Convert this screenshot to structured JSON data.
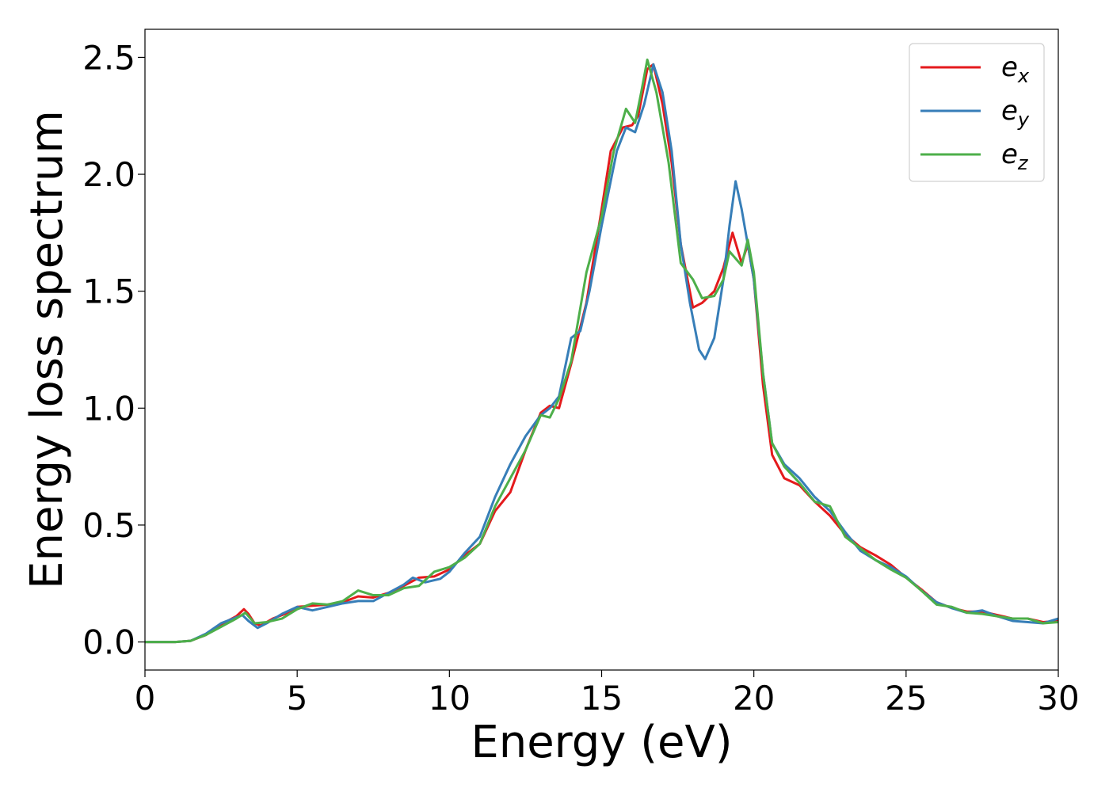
{
  "chart_data": {
    "type": "line",
    "title": "",
    "xlabel": "Energy (eV)",
    "ylabel": "Energy loss spectrum",
    "xlim": [
      0,
      30
    ],
    "ylim": [
      -0.12,
      2.62
    ],
    "xticks": [
      0,
      5,
      10,
      15,
      20,
      25,
      30
    ],
    "xtick_labels": [
      "0",
      "5",
      "10",
      "15",
      "20",
      "25",
      "30"
    ],
    "yticks": [
      0.0,
      0.5,
      1.0,
      1.5,
      2.0,
      2.5
    ],
    "ytick_labels": [
      "0.0",
      "0.5",
      "1.0",
      "1.5",
      "2.0",
      "2.5"
    ],
    "grid": false,
    "legend_position": "top-right",
    "series": [
      {
        "name": "e",
        "subscript": "x",
        "color": "#e41a1c",
        "points": [
          [
            0,
            0
          ],
          [
            1,
            0
          ],
          [
            1.5,
            0.005
          ],
          [
            2,
            0.03
          ],
          [
            2.5,
            0.075
          ],
          [
            3,
            0.11
          ],
          [
            3.25,
            0.14
          ],
          [
            3.4,
            0.12
          ],
          [
            3.6,
            0.08
          ],
          [
            3.8,
            0.07
          ],
          [
            4.2,
            0.1
          ],
          [
            4.6,
            0.12
          ],
          [
            5,
            0.15
          ],
          [
            5.5,
            0.155
          ],
          [
            6,
            0.16
          ],
          [
            6.5,
            0.17
          ],
          [
            7,
            0.195
          ],
          [
            7.5,
            0.19
          ],
          [
            8,
            0.21
          ],
          [
            8.5,
            0.24
          ],
          [
            9,
            0.275
          ],
          [
            9.5,
            0.28
          ],
          [
            10,
            0.31
          ],
          [
            10.5,
            0.37
          ],
          [
            11,
            0.42
          ],
          [
            11.5,
            0.56
          ],
          [
            12,
            0.64
          ],
          [
            12.5,
            0.82
          ],
          [
            13,
            0.98
          ],
          [
            13.3,
            1.01
          ],
          [
            13.6,
            1.0
          ],
          [
            14,
            1.19
          ],
          [
            14.5,
            1.45
          ],
          [
            15,
            1.85
          ],
          [
            15.3,
            2.1
          ],
          [
            15.7,
            2.2
          ],
          [
            16,
            2.21
          ],
          [
            16.2,
            2.25
          ],
          [
            16.5,
            2.45
          ],
          [
            16.7,
            2.47
          ],
          [
            17,
            2.3
          ],
          [
            17.3,
            2.05
          ],
          [
            17.6,
            1.7
          ],
          [
            18,
            1.43
          ],
          [
            18.3,
            1.45
          ],
          [
            18.7,
            1.5
          ],
          [
            19,
            1.6
          ],
          [
            19.3,
            1.75
          ],
          [
            19.6,
            1.62
          ],
          [
            19.8,
            1.7
          ],
          [
            20,
            1.55
          ],
          [
            20.3,
            1.1
          ],
          [
            20.6,
            0.8
          ],
          [
            21,
            0.7
          ],
          [
            21.5,
            0.67
          ],
          [
            22,
            0.6
          ],
          [
            22.5,
            0.54
          ],
          [
            23,
            0.46
          ],
          [
            23.5,
            0.405
          ],
          [
            24,
            0.37
          ],
          [
            24.5,
            0.33
          ],
          [
            25,
            0.275
          ],
          [
            25.5,
            0.225
          ],
          [
            26,
            0.17
          ],
          [
            26.5,
            0.145
          ],
          [
            27,
            0.13
          ],
          [
            27.5,
            0.13
          ],
          [
            28,
            0.115
          ],
          [
            28.5,
            0.1
          ],
          [
            29,
            0.1
          ],
          [
            29.5,
            0.085
          ],
          [
            30,
            0.09
          ]
        ]
      },
      {
        "name": "e",
        "subscript": "y",
        "color": "#377eb8",
        "points": [
          [
            0,
            0
          ],
          [
            1,
            0
          ],
          [
            1.5,
            0.005
          ],
          [
            2,
            0.035
          ],
          [
            2.5,
            0.08
          ],
          [
            3,
            0.105
          ],
          [
            3.2,
            0.115
          ],
          [
            3.4,
            0.09
          ],
          [
            3.7,
            0.06
          ],
          [
            4,
            0.08
          ],
          [
            4.5,
            0.12
          ],
          [
            5,
            0.15
          ],
          [
            5.5,
            0.135
          ],
          [
            6,
            0.15
          ],
          [
            6.5,
            0.165
          ],
          [
            7,
            0.175
          ],
          [
            7.5,
            0.175
          ],
          [
            8,
            0.21
          ],
          [
            8.5,
            0.245
          ],
          [
            8.8,
            0.275
          ],
          [
            9.2,
            0.255
          ],
          [
            9.7,
            0.27
          ],
          [
            10,
            0.3
          ],
          [
            10.5,
            0.38
          ],
          [
            11,
            0.45
          ],
          [
            11.5,
            0.62
          ],
          [
            12,
            0.76
          ],
          [
            12.5,
            0.88
          ],
          [
            13,
            0.97
          ],
          [
            13.3,
            1.0
          ],
          [
            13.6,
            1.05
          ],
          [
            14,
            1.3
          ],
          [
            14.3,
            1.33
          ],
          [
            14.6,
            1.5
          ],
          [
            15,
            1.78
          ],
          [
            15.5,
            2.1
          ],
          [
            15.8,
            2.2
          ],
          [
            16.1,
            2.18
          ],
          [
            16.4,
            2.3
          ],
          [
            16.7,
            2.47
          ],
          [
            17,
            2.35
          ],
          [
            17.3,
            2.1
          ],
          [
            17.6,
            1.7
          ],
          [
            17.9,
            1.45
          ],
          [
            18.2,
            1.25
          ],
          [
            18.4,
            1.21
          ],
          [
            18.7,
            1.3
          ],
          [
            19,
            1.55
          ],
          [
            19.2,
            1.78
          ],
          [
            19.4,
            1.97
          ],
          [
            19.6,
            1.85
          ],
          [
            19.8,
            1.7
          ],
          [
            20,
            1.55
          ],
          [
            20.3,
            1.15
          ],
          [
            20.6,
            0.85
          ],
          [
            21,
            0.76
          ],
          [
            21.5,
            0.7
          ],
          [
            22,
            0.62
          ],
          [
            22.5,
            0.56
          ],
          [
            23,
            0.47
          ],
          [
            23.5,
            0.39
          ],
          [
            24,
            0.35
          ],
          [
            24.5,
            0.32
          ],
          [
            25,
            0.28
          ],
          [
            25.5,
            0.22
          ],
          [
            26,
            0.17
          ],
          [
            26.5,
            0.145
          ],
          [
            27,
            0.125
          ],
          [
            27.5,
            0.135
          ],
          [
            28,
            0.11
          ],
          [
            28.5,
            0.09
          ],
          [
            29,
            0.085
          ],
          [
            29.5,
            0.08
          ],
          [
            30,
            0.1
          ]
        ]
      },
      {
        "name": "e",
        "subscript": "z",
        "color": "#4daf4a",
        "points": [
          [
            0,
            0
          ],
          [
            1,
            0
          ],
          [
            1.5,
            0.005
          ],
          [
            2,
            0.03
          ],
          [
            2.5,
            0.065
          ],
          [
            3,
            0.1
          ],
          [
            3.3,
            0.125
          ],
          [
            3.6,
            0.08
          ],
          [
            4,
            0.085
          ],
          [
            4.5,
            0.1
          ],
          [
            5,
            0.14
          ],
          [
            5.5,
            0.165
          ],
          [
            6,
            0.16
          ],
          [
            6.5,
            0.175
          ],
          [
            7,
            0.22
          ],
          [
            7.5,
            0.2
          ],
          [
            8,
            0.2
          ],
          [
            8.5,
            0.23
          ],
          [
            9,
            0.24
          ],
          [
            9.5,
            0.3
          ],
          [
            10,
            0.32
          ],
          [
            10.5,
            0.36
          ],
          [
            11,
            0.42
          ],
          [
            11.5,
            0.58
          ],
          [
            12,
            0.7
          ],
          [
            12.5,
            0.82
          ],
          [
            13,
            0.97
          ],
          [
            13.3,
            0.96
          ],
          [
            13.6,
            1.04
          ],
          [
            14,
            1.2
          ],
          [
            14.5,
            1.58
          ],
          [
            15,
            1.82
          ],
          [
            15.4,
            2.1
          ],
          [
            15.8,
            2.28
          ],
          [
            16.1,
            2.22
          ],
          [
            16.3,
            2.35
          ],
          [
            16.5,
            2.49
          ],
          [
            16.8,
            2.35
          ],
          [
            17.2,
            2.05
          ],
          [
            17.6,
            1.62
          ],
          [
            18,
            1.55
          ],
          [
            18.3,
            1.47
          ],
          [
            18.7,
            1.48
          ],
          [
            19,
            1.55
          ],
          [
            19.2,
            1.67
          ],
          [
            19.6,
            1.61
          ],
          [
            19.8,
            1.72
          ],
          [
            20,
            1.58
          ],
          [
            20.3,
            1.15
          ],
          [
            20.6,
            0.85
          ],
          [
            21,
            0.75
          ],
          [
            21.5,
            0.68
          ],
          [
            22,
            0.6
          ],
          [
            22.5,
            0.58
          ],
          [
            23,
            0.45
          ],
          [
            23.5,
            0.4
          ],
          [
            24,
            0.35
          ],
          [
            24.5,
            0.31
          ],
          [
            25,
            0.275
          ],
          [
            25.5,
            0.22
          ],
          [
            26,
            0.16
          ],
          [
            26.5,
            0.15
          ],
          [
            27,
            0.125
          ],
          [
            27.5,
            0.12
          ],
          [
            28,
            0.11
          ],
          [
            28.5,
            0.1
          ],
          [
            29,
            0.1
          ],
          [
            29.5,
            0.08
          ],
          [
            30,
            0.085
          ]
        ]
      }
    ]
  }
}
